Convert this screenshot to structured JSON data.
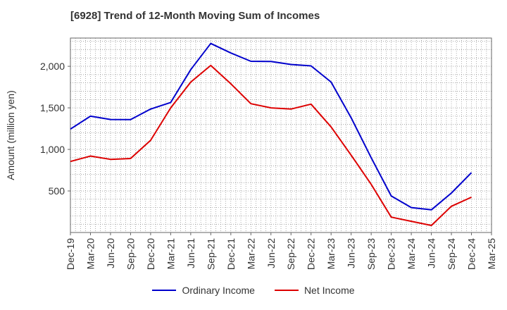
{
  "chart_data": {
    "type": "line",
    "title": "[6928]  Trend of 12-Month Moving Sum of Incomes",
    "xlabel": "",
    "ylabel": "Amount (million yen)",
    "ylim": [
      0,
      2340
    ],
    "yticks": [
      500,
      1000,
      1500,
      2000
    ],
    "ytick_labels": [
      "500",
      "1,000",
      "1,500",
      "2,000"
    ],
    "grid": true,
    "legend": "bottom",
    "categories": [
      "Dec-19",
      "Mar-20",
      "Jun-20",
      "Sep-20",
      "Dec-20",
      "Mar-21",
      "Jun-21",
      "Sep-21",
      "Dec-21",
      "Mar-22",
      "Jun-22",
      "Sep-22",
      "Dec-22",
      "Mar-23",
      "Jun-23",
      "Sep-23",
      "Dec-23",
      "Mar-24",
      "Jun-24",
      "Sep-24",
      "Dec-24",
      "Mar-25"
    ],
    "series": [
      {
        "name": "Ordinary Income",
        "color": "#0000cc",
        "values": [
          1245,
          1400,
          1360,
          1358,
          1485,
          1565,
          1960,
          2275,
          2160,
          2060,
          2058,
          2022,
          2005,
          1810,
          1380,
          900,
          440,
          300,
          273,
          475,
          720,
          null
        ]
      },
      {
        "name": "Net Income",
        "color": "#dd0000",
        "values": [
          855,
          920,
          880,
          890,
          1110,
          1500,
          1810,
          2010,
          1790,
          1550,
          1500,
          1485,
          1545,
          1270,
          930,
          580,
          185,
          135,
          85,
          315,
          425,
          null
        ]
      }
    ]
  }
}
